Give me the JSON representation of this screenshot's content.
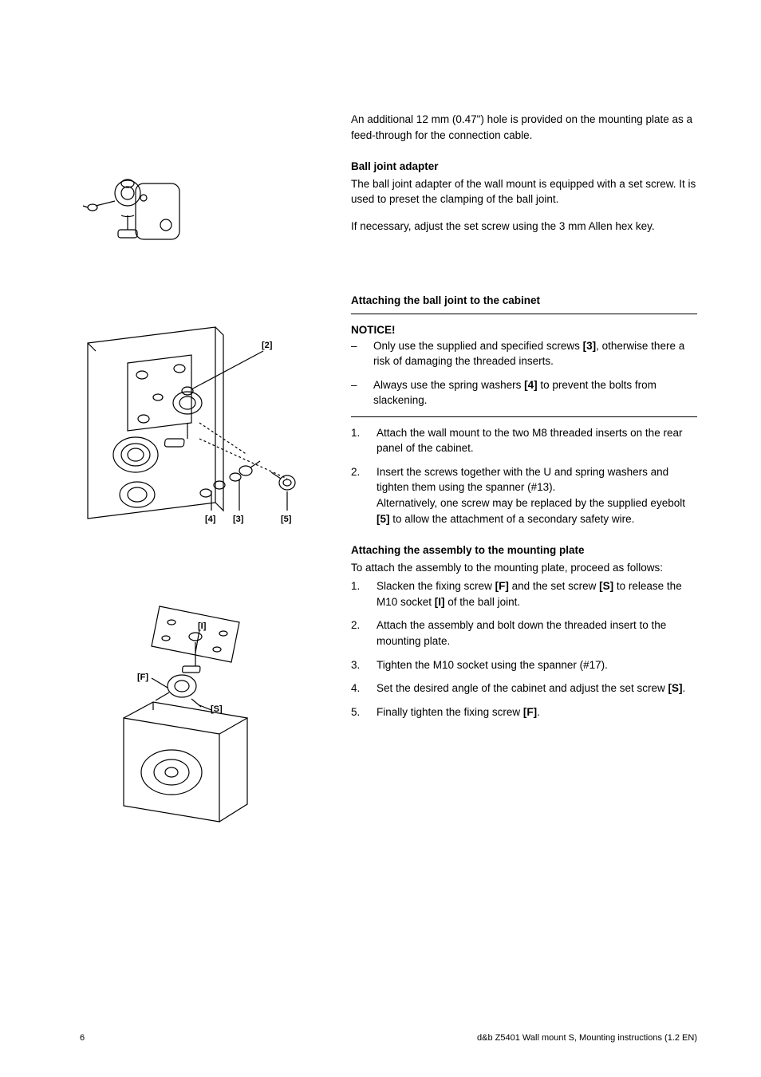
{
  "intro": "An additional 12 mm (0.47\") hole is provided on the mounting plate as a feed-through for the connection cable.",
  "ball_joint": {
    "heading": "Ball joint adapter",
    "p1": "The ball joint adapter of the wall mount is equipped with a set screw. It is used to preset the clamping of the ball joint.",
    "p2": "If necessary, adjust the set screw using the 3 mm Allen hex key."
  },
  "attach_cabinet": {
    "heading": "Attaching the ball joint to the cabinet",
    "notice_label": "NOTICE!",
    "notice_items": [
      {
        "pre": "Only use the supplied and specified screws ",
        "bold": "[3]",
        "post": ", otherwise there a risk of damaging the threaded inserts."
      },
      {
        "pre": "Always use the spring washers ",
        "bold": "[4]",
        "post": " to prevent the bolts from slackening."
      }
    ],
    "steps": [
      {
        "text": "Attach the wall mount to the two M8 threaded inserts on the rear panel of the cabinet."
      },
      {
        "pre": "Insert the screws together with the U and spring washers and tighten them using the spanner (#13).\nAlternatively, one screw may be replaced by the supplied eyebolt ",
        "bold": "[5]",
        "post": " to allow the attachment of a secondary safety wire."
      }
    ]
  },
  "attach_plate": {
    "heading": "Attaching the assembly to the mounting plate",
    "intro": "To attach the assembly to the mounting plate, proceed as follows:",
    "steps": [
      {
        "parts": [
          "Slacken the fixing screw ",
          {
            "b": "[F]"
          },
          " and the set screw ",
          {
            "b": "[S]"
          },
          " to release the M10 socket ",
          {
            "b": "[I]"
          },
          " of the ball joint."
        ]
      },
      {
        "parts": [
          "Attach the assembly and bolt down the threaded insert to the mounting plate."
        ]
      },
      {
        "parts": [
          "Tighten the M10 socket using the spanner (#17)."
        ]
      },
      {
        "parts": [
          "Set the desired angle of the cabinet and adjust the set screw ",
          {
            "b": "[S]"
          },
          "."
        ]
      },
      {
        "parts": [
          "Finally tighten the fixing screw ",
          {
            "b": "[F]"
          },
          "."
        ]
      }
    ]
  },
  "figures": {
    "fig2_callouts": {
      "top": "[2]",
      "b1": "[4]",
      "b2": "[3]",
      "b3": "[5]"
    },
    "fig3_callouts": {
      "i": "[I]",
      "f": "[F]",
      "s": "[S]"
    }
  },
  "footer": {
    "page": "6",
    "doc": "d&b Z5401 Wall mount S, Mounting instructions (1.2 EN)"
  }
}
